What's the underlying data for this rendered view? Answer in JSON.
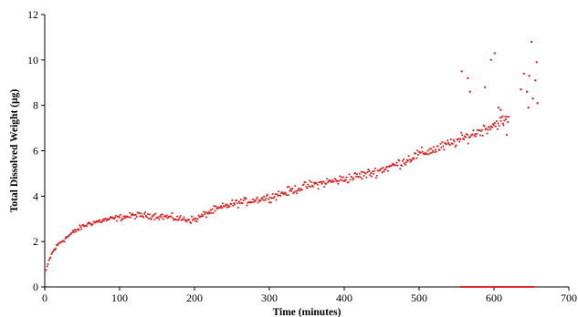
{
  "chart_data": {
    "type": "scatter",
    "title": "",
    "xlabel": "Time (minutes)",
    "ylabel": "Total Dissolved Weight (µg)",
    "xlim": [
      0,
      700
    ],
    "ylim": [
      0,
      12
    ],
    "xticks": [
      0,
      100,
      200,
      300,
      400,
      500,
      600,
      700
    ],
    "yticks": [
      0,
      2,
      4,
      6,
      8,
      10,
      12
    ],
    "grid": false,
    "legend": "none",
    "marker_color": "#e02020",
    "trend_points": [
      {
        "x": 0,
        "y": 0.6
      },
      {
        "x": 3,
        "y": 0.8
      },
      {
        "x": 6,
        "y": 1.2
      },
      {
        "x": 10,
        "y": 1.5
      },
      {
        "x": 15,
        "y": 1.75
      },
      {
        "x": 20,
        "y": 1.95
      },
      {
        "x": 30,
        "y": 2.2
      },
      {
        "x": 40,
        "y": 2.45
      },
      {
        "x": 50,
        "y": 2.65
      },
      {
        "x": 60,
        "y": 2.8
      },
      {
        "x": 80,
        "y": 2.95
      },
      {
        "x": 100,
        "y": 3.05
      },
      {
        "x": 120,
        "y": 3.15
      },
      {
        "x": 140,
        "y": 3.15
      },
      {
        "x": 160,
        "y": 3.1
      },
      {
        "x": 180,
        "y": 3.0
      },
      {
        "x": 200,
        "y": 2.95
      },
      {
        "x": 220,
        "y": 3.3
      },
      {
        "x": 250,
        "y": 3.65
      },
      {
        "x": 300,
        "y": 3.95
      },
      {
        "x": 350,
        "y": 4.45
      },
      {
        "x": 400,
        "y": 4.75
      },
      {
        "x": 440,
        "y": 5.05
      },
      {
        "x": 470,
        "y": 5.4
      },
      {
        "x": 500,
        "y": 5.85
      },
      {
        "x": 530,
        "y": 6.15
      },
      {
        "x": 560,
        "y": 6.55
      },
      {
        "x": 590,
        "y": 7.0
      },
      {
        "x": 610,
        "y": 7.3
      },
      {
        "x": 620,
        "y": 7.4
      }
    ],
    "outliers": [
      {
        "x": 557,
        "y": 9.5
      },
      {
        "x": 565,
        "y": 9.2
      },
      {
        "x": 568,
        "y": 8.6
      },
      {
        "x": 588,
        "y": 8.8
      },
      {
        "x": 596,
        "y": 10.0
      },
      {
        "x": 601,
        "y": 10.3
      },
      {
        "x": 606,
        "y": 7.9
      },
      {
        "x": 609,
        "y": 7.8
      },
      {
        "x": 612,
        "y": 7.2
      },
      {
        "x": 617,
        "y": 6.7
      },
      {
        "x": 640,
        "y": 9.4
      },
      {
        "x": 644,
        "y": 8.6
      },
      {
        "x": 647,
        "y": 9.3
      },
      {
        "x": 650,
        "y": 10.8
      },
      {
        "x": 652,
        "y": 8.3
      },
      {
        "x": 655,
        "y": 9.1
      },
      {
        "x": 657,
        "y": 9.9
      },
      {
        "x": 658,
        "y": 8.1
      },
      {
        "x": 646,
        "y": 7.9
      },
      {
        "x": 636,
        "y": 8.7
      }
    ],
    "baseline_points": {
      "x_start": 555,
      "x_end": 655,
      "y": 0
    },
    "scatter_noise": 0.16
  }
}
